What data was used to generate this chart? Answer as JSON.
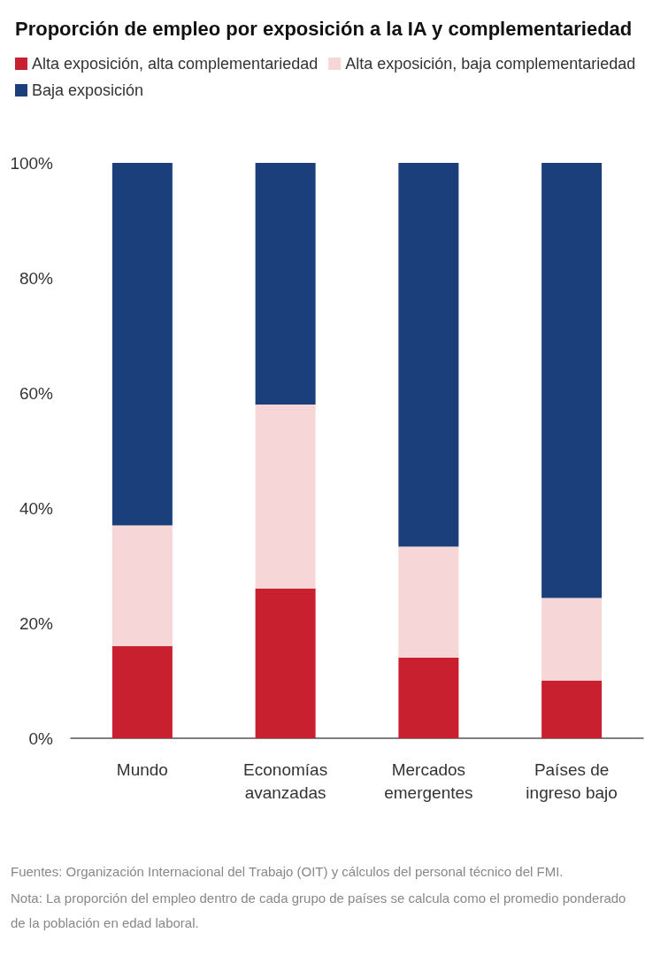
{
  "chart_data": {
    "type": "bar",
    "stacked": true,
    "title": "Proporción de empleo por exposición a la IA y complementariedad",
    "categories": [
      "Mundo",
      "Economías\navanzadas",
      "Mercados\nemergentes",
      "Países de\ningreso bajo"
    ],
    "series": [
      {
        "name": "Alta exposición, alta complementariedad",
        "color": "#c8202f",
        "values": [
          16,
          26,
          14,
          10
        ]
      },
      {
        "name": "Alta exposición, baja complementariedad",
        "color": "#f7d6d8",
        "values": [
          21,
          32,
          19.3,
          14.4
        ]
      },
      {
        "name": "Baja exposición",
        "color": "#1a3f7a",
        "values": [
          63,
          42,
          66.7,
          75.6
        ]
      }
    ],
    "ylim": [
      0,
      100
    ],
    "yticks": [
      {
        "value": 0,
        "label": "0%"
      },
      {
        "value": 20,
        "label": "20%"
      },
      {
        "value": 40,
        "label": "40%"
      },
      {
        "value": 60,
        "label": "60%"
      },
      {
        "value": 80,
        "label": "80%"
      },
      {
        "value": 100,
        "label": "100%"
      }
    ],
    "grid": false,
    "legend": "top left",
    "annotations": [
      "Fuentes: Organización Internacional del Trabajo (OIT) y cálculos del personal técnico del FMI.",
      "Nota: La proporción del empleo dentro de cada grupo de países se calcula como el promedio ponderado de la población en edad laboral."
    ]
  }
}
